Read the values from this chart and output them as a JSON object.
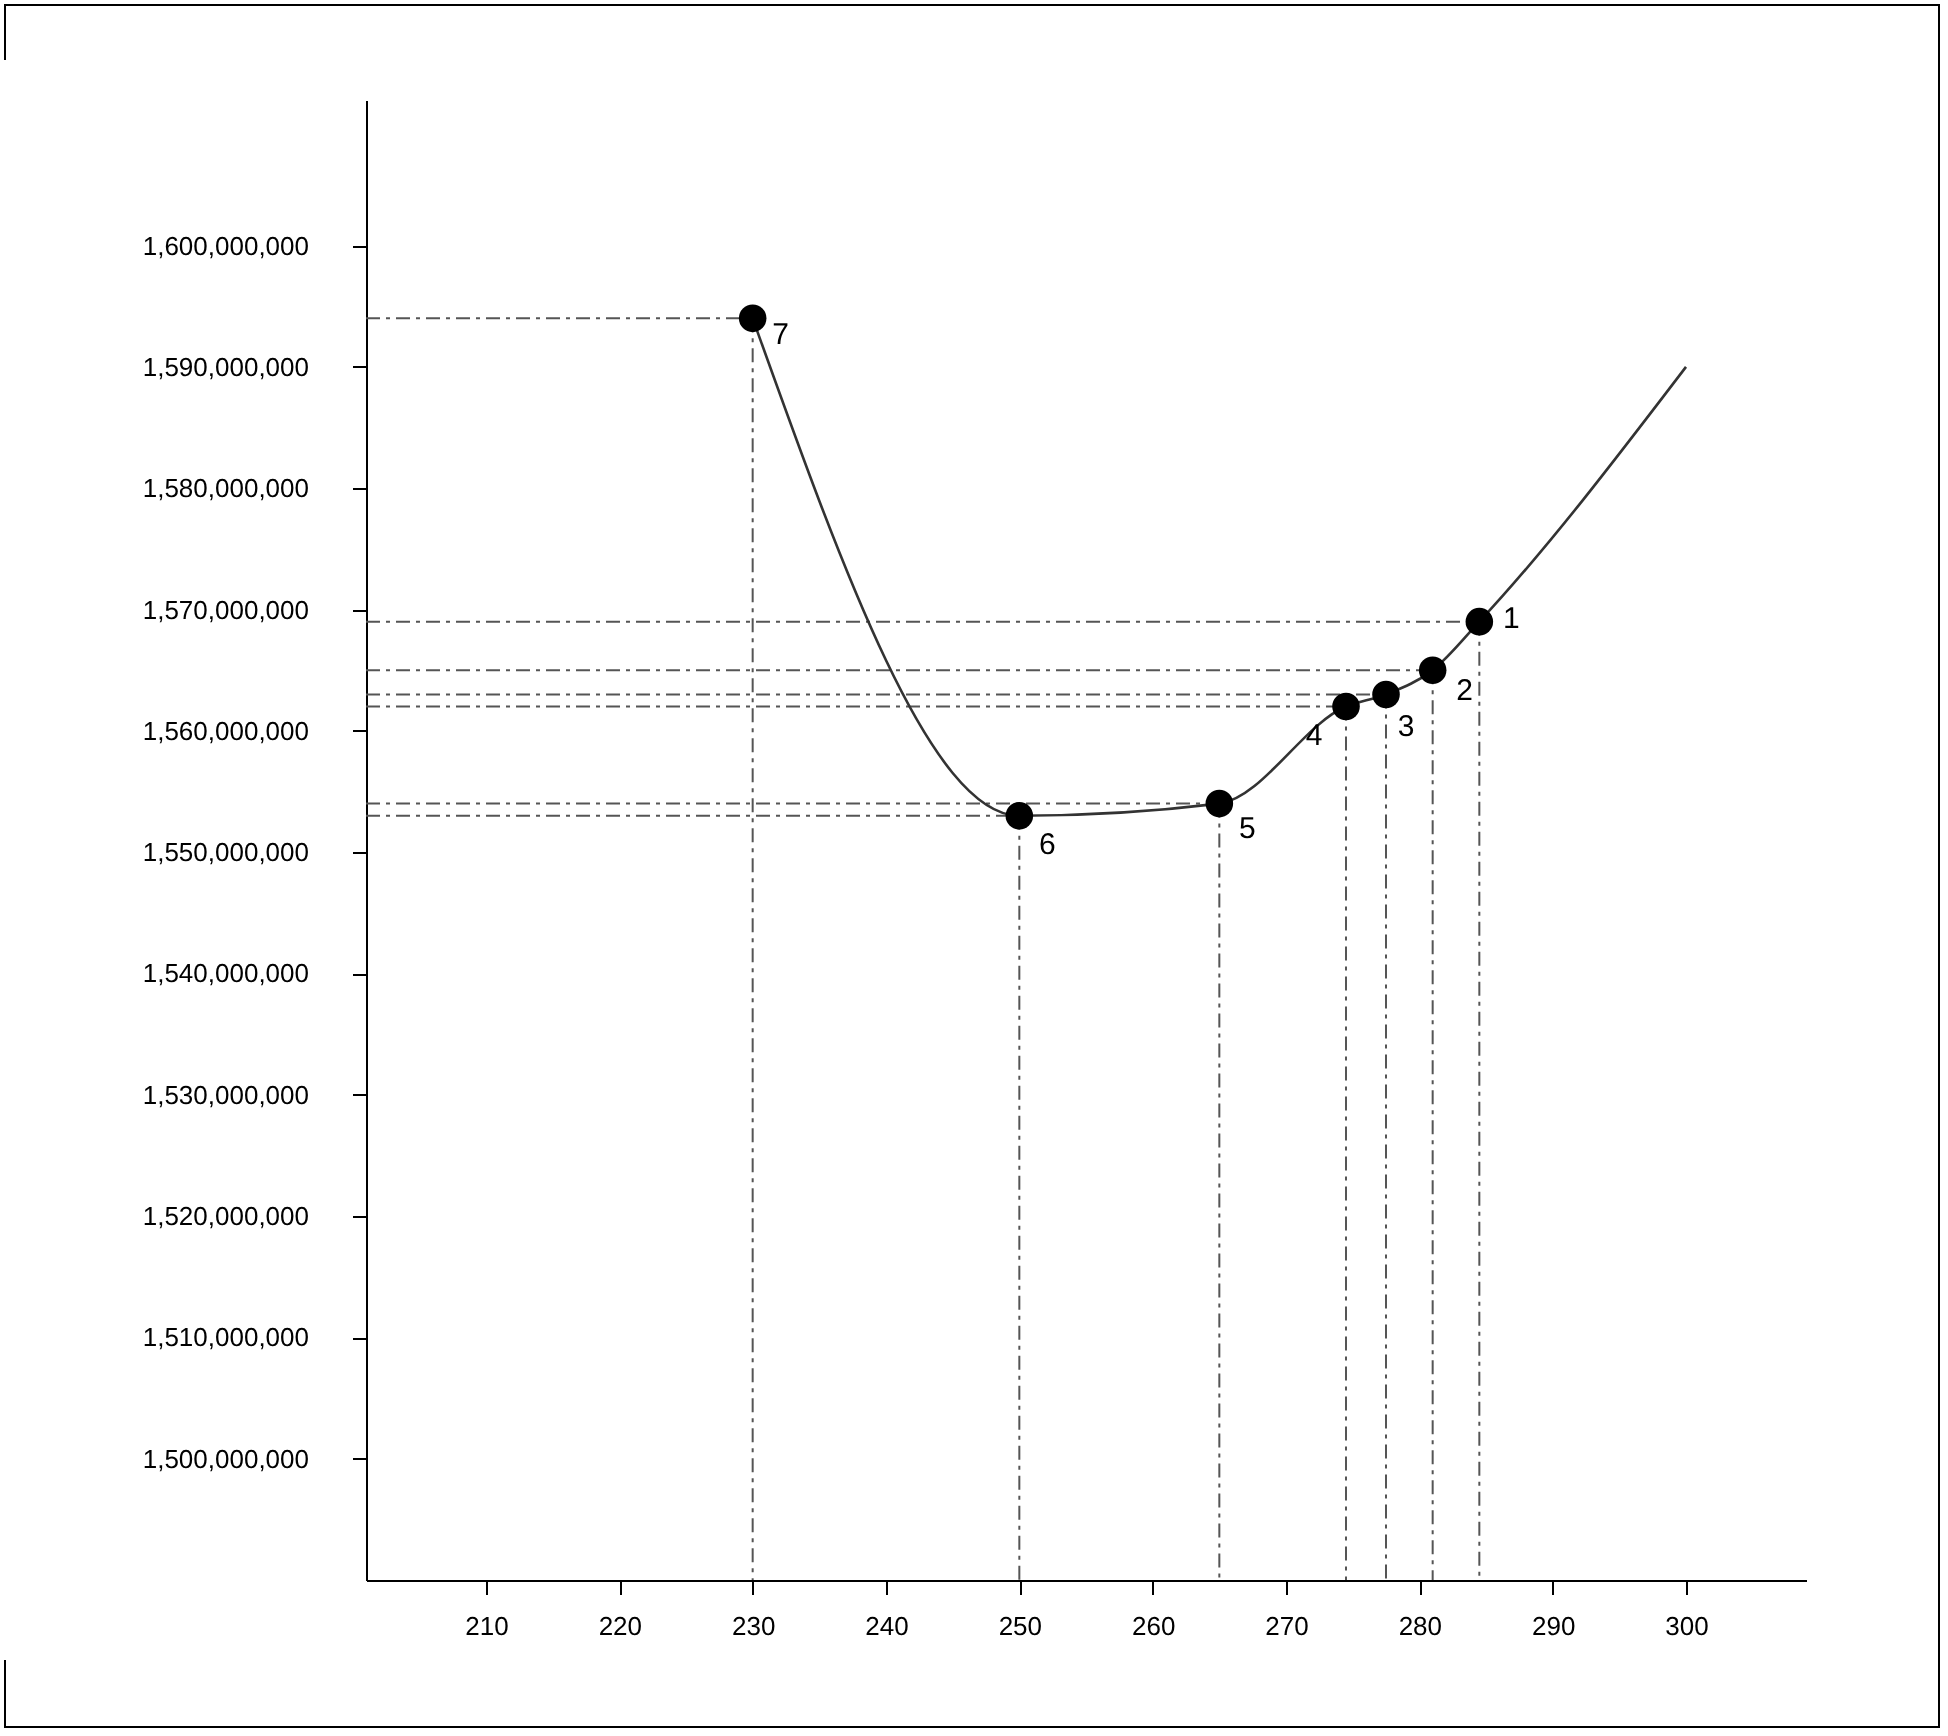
{
  "chart_data": {
    "type": "line",
    "xlim": [
      201,
      309
    ],
    "ylim": [
      1490000000,
      1612000000
    ],
    "xticks": [
      210,
      220,
      230,
      240,
      250,
      260,
      270,
      280,
      290,
      300
    ],
    "yticks": [
      {
        "value": 1500000000,
        "label": "1,500,000,000"
      },
      {
        "value": 1510000000,
        "label": "1,510,000,000"
      },
      {
        "value": 1520000000,
        "label": "1,520,000,000"
      },
      {
        "value": 1530000000,
        "label": "1,530,000,000"
      },
      {
        "value": 1540000000,
        "label": "1,540,000,000"
      },
      {
        "value": 1550000000,
        "label": "1,550,000,000"
      },
      {
        "value": 1560000000,
        "label": "1,560,000,000"
      },
      {
        "value": 1570000000,
        "label": "1,570,000,000"
      },
      {
        "value": 1580000000,
        "label": "1,580,000,000"
      },
      {
        "value": 1590000000,
        "label": "1,590,000,000"
      },
      {
        "value": 1600000000,
        "label": "1,600,000,000"
      }
    ],
    "series": [
      {
        "type": "line",
        "color": "#333333",
        "x": [
          230,
          250,
          265,
          274.5,
          277.5,
          281,
          284.5,
          300
        ],
        "values": [
          1594000000,
          1553000000,
          1554000000,
          1562000000,
          1563000000,
          1565000000,
          1569000000,
          1590000000
        ]
      },
      {
        "type": "scatter",
        "marker": "circle",
        "color": "#000000",
        "x": [
          230,
          250,
          265,
          274.5,
          277.5,
          281,
          284.5
        ],
        "values": [
          1594000000,
          1553000000,
          1554000000,
          1562000000,
          1563000000,
          1565000000,
          1569000000
        ]
      }
    ],
    "annotations": [
      {
        "text": "7",
        "x": 230,
        "y": 1594000000
      },
      {
        "text": "6",
        "x": 250,
        "y": 1553000000
      },
      {
        "text": "5",
        "x": 265,
        "y": 1554000000
      },
      {
        "text": "4",
        "x": 274.5,
        "y": 1562000000
      },
      {
        "text": "3",
        "x": 277.5,
        "y": 1563000000
      },
      {
        "text": "2",
        "x": 281,
        "y": 1565000000
      },
      {
        "text": "1",
        "x": 284.5,
        "y": 1569000000
      }
    ]
  }
}
